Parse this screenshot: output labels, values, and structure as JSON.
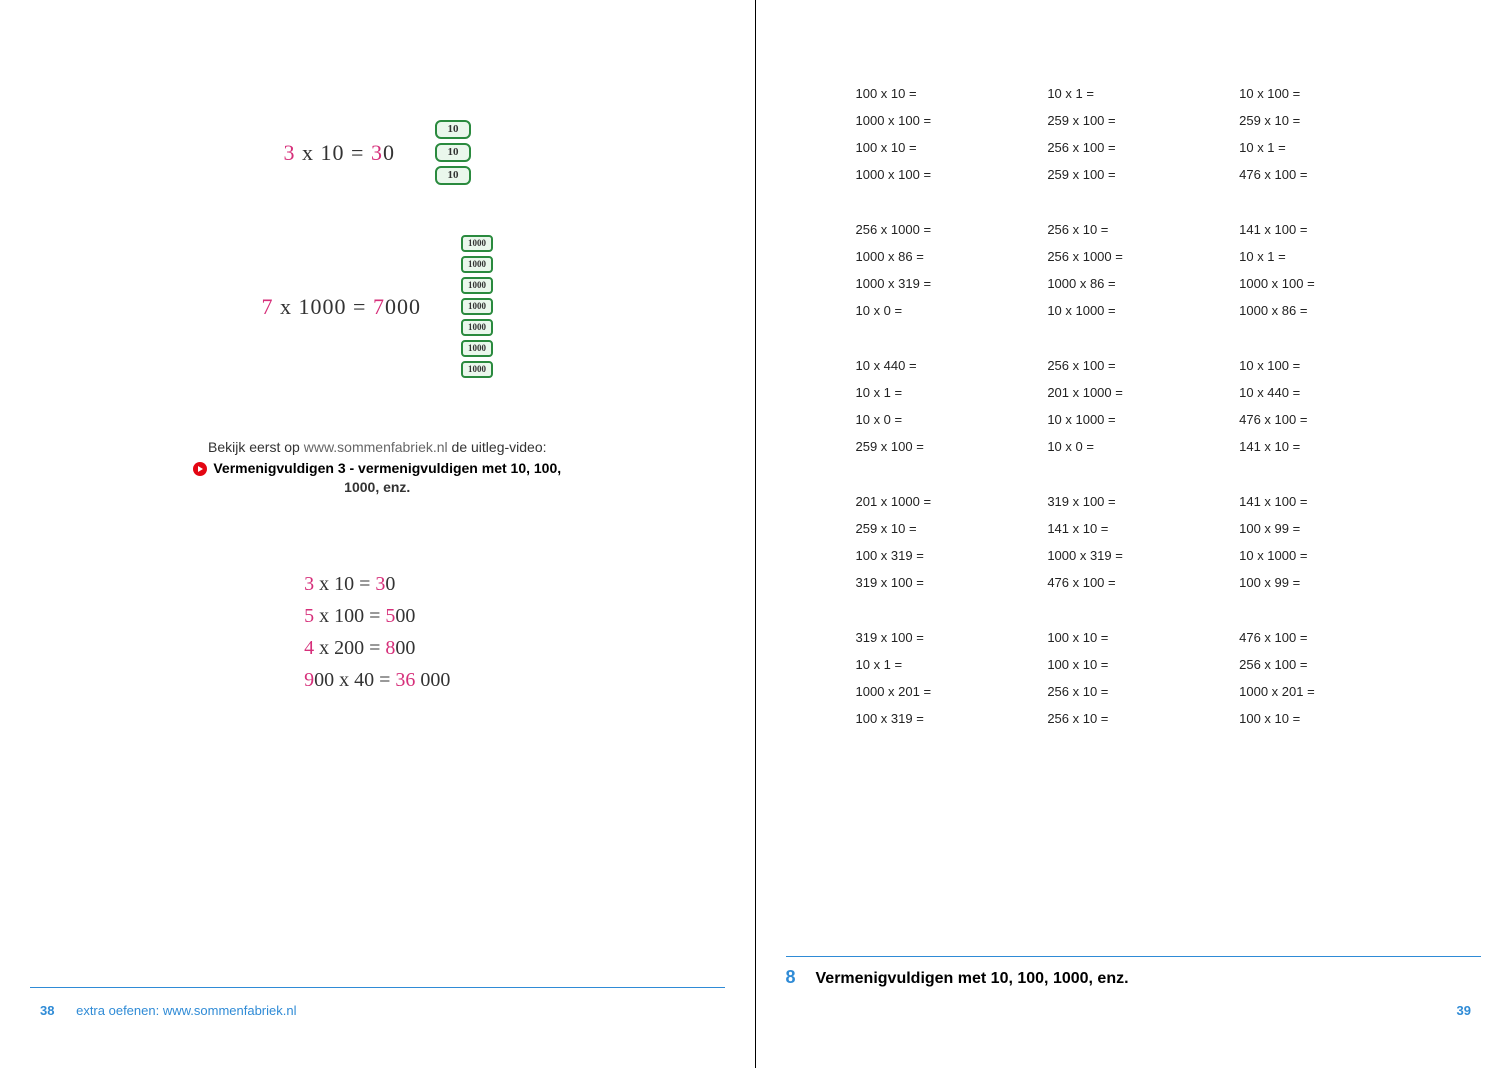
{
  "left_page": {
    "hand_eq_1": {
      "first": "3",
      "rest": " x 10 = ",
      "ans_first": "3",
      "ans_rest": "0"
    },
    "chips_10": [
      "10",
      "10",
      "10"
    ],
    "hand_eq_2": {
      "first": "7",
      "rest": " x 1000 = ",
      "ans_first": "7",
      "ans_rest": "000"
    },
    "chips_1000": [
      "1000",
      "1000",
      "1000",
      "1000",
      "1000",
      "1000",
      "1000"
    ],
    "video_intro_pre": "Bekijk eerst op ",
    "video_intro_site": "www.sommenfabriek.nl",
    "video_intro_post": " de uitleg-video:",
    "video_title_line1": "Vermenigvuldigen 3 - vermenigvuldigen met 10, 100,",
    "video_title_line2": "1000, enz.",
    "hand_list": [
      {
        "first": "3",
        "rest": " x 10 = ",
        "ans_first": "3",
        "ans_rest": "0"
      },
      {
        "first": "5",
        "rest": " x 100 = ",
        "ans_first": "5",
        "ans_rest": "00"
      },
      {
        "first": "4",
        "rest": " x 200 = ",
        "ans_first": "8",
        "ans_rest": "00"
      },
      {
        "first": "9",
        "rest": "00 x 40 = ",
        "ans_first": "36",
        "ans_rest": " 000"
      }
    ],
    "footer_page": "38",
    "footer_text": "extra oefenen: www.sommenfabriek.nl"
  },
  "right_page": {
    "problem_groups": [
      [
        [
          "100 x 10 =",
          "10 x 1 =",
          "10 x 100 ="
        ],
        [
          "1000 x 100 =",
          "259 x 100 =",
          "259 x 10 ="
        ],
        [
          "100 x 10 =",
          "256 x 100 =",
          "10 x 1 ="
        ],
        [
          "1000 x 100 =",
          "259 x 100 =",
          "476 x 100 ="
        ]
      ],
      [
        [
          "256 x 1000 =",
          "256 x 10 =",
          "141 x 100 ="
        ],
        [
          "1000 x 86 =",
          "256 x 1000 =",
          "10 x 1 ="
        ],
        [
          "1000 x 319 =",
          "1000 x 86 =",
          "1000 x 100 ="
        ],
        [
          "10 x 0 =",
          "10 x 1000 =",
          "1000 x 86 ="
        ]
      ],
      [
        [
          "10 x 440 =",
          "256 x 100 =",
          "10 x 100 ="
        ],
        [
          "10 x 1 =",
          "201 x 1000 =",
          "10 x 440 ="
        ],
        [
          "10 x 0 =",
          "10 x 1000 =",
          "476 x 100 ="
        ],
        [
          "259 x 100 =",
          "10 x 0 =",
          "141 x 10 ="
        ]
      ],
      [
        [
          "201 x 1000 =",
          "319 x 100 =",
          "141 x 100 ="
        ],
        [
          "259 x 10 =",
          "141 x 10 =",
          "100 x 99 ="
        ],
        [
          "100 x 319 =",
          "1000 x 319 =",
          "10 x 1000 ="
        ],
        [
          "319 x 100 =",
          "476 x 100 =",
          "100 x 99 ="
        ]
      ],
      [
        [
          "319 x 100 =",
          "100 x 10 =",
          "476 x 100 ="
        ],
        [
          "10 x 1 =",
          "100 x 10 =",
          "256 x 100 ="
        ],
        [
          "1000 x 201 =",
          "256 x 10 =",
          "1000 x 201 ="
        ],
        [
          "100 x 319 =",
          "256 x 10 =",
          "100 x 10 ="
        ]
      ]
    ],
    "chapter_num": "8",
    "chapter_title": "Vermenigvuldigen met 10, 100, 1000, enz.",
    "footer_page": "39"
  }
}
